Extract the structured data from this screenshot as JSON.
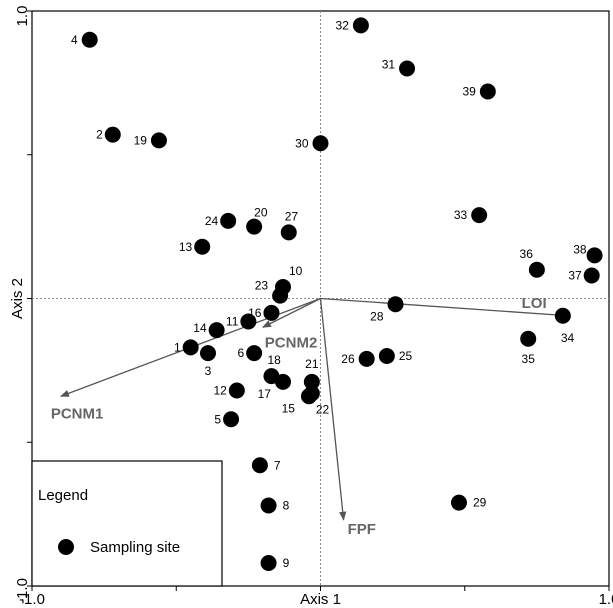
{
  "chart_data": {
    "type": "scatter",
    "xlabel": "Axis 1",
    "ylabel": "Axis 2",
    "xlim": [
      -1.0,
      1.0
    ],
    "ylim": [
      -1.0,
      1.0
    ],
    "x_tick_labels": [
      {
        "value": -1.0,
        "label": "-1.0"
      },
      {
        "value": 0.0,
        "label": "Axis 1"
      },
      {
        "value": 1.0,
        "label": "1.0"
      }
    ],
    "y_tick_labels": [
      {
        "value": 1.0,
        "label": "1.0"
      },
      {
        "value": -1.0,
        "label": "-1.0"
      }
    ],
    "points": [
      {
        "id": "1",
        "x": -0.45,
        "y": -0.17
      },
      {
        "id": "2",
        "x": -0.72,
        "y": 0.57
      },
      {
        "id": "3",
        "x": -0.39,
        "y": -0.19
      },
      {
        "id": "4",
        "x": -0.8,
        "y": 0.9
      },
      {
        "id": "5",
        "x": -0.31,
        "y": -0.42
      },
      {
        "id": "6",
        "x": -0.23,
        "y": -0.19
      },
      {
        "id": "7",
        "x": -0.21,
        "y": -0.58
      },
      {
        "id": "8",
        "x": -0.18,
        "y": -0.72
      },
      {
        "id": "9",
        "x": -0.18,
        "y": -0.92
      },
      {
        "id": "10",
        "x": -0.13,
        "y": 0.04
      },
      {
        "id": "11",
        "x": -0.25,
        "y": -0.08
      },
      {
        "id": "12",
        "x": -0.29,
        "y": -0.32
      },
      {
        "id": "13",
        "x": -0.41,
        "y": 0.18
      },
      {
        "id": "14",
        "x": -0.36,
        "y": -0.11
      },
      {
        "id": "15",
        "x": -0.04,
        "y": -0.34
      },
      {
        "id": "16",
        "x": -0.17,
        "y": -0.05
      },
      {
        "id": "17",
        "x": -0.13,
        "y": -0.29
      },
      {
        "id": "18",
        "x": -0.17,
        "y": -0.27
      },
      {
        "id": "19",
        "x": -0.56,
        "y": 0.55
      },
      {
        "id": "20",
        "x": -0.23,
        "y": 0.25
      },
      {
        "id": "21",
        "x": -0.03,
        "y": -0.29
      },
      {
        "id": "22",
        "x": -0.03,
        "y": -0.33
      },
      {
        "id": "23",
        "x": -0.14,
        "y": 0.01
      },
      {
        "id": "24",
        "x": -0.32,
        "y": 0.27
      },
      {
        "id": "25",
        "x": 0.23,
        "y": -0.2
      },
      {
        "id": "26",
        "x": 0.16,
        "y": -0.21
      },
      {
        "id": "27",
        "x": -0.11,
        "y": 0.23
      },
      {
        "id": "28",
        "x": 0.26,
        "y": -0.02
      },
      {
        "id": "29",
        "x": 0.48,
        "y": -0.71
      },
      {
        "id": "30",
        "x": 0.0,
        "y": 0.54
      },
      {
        "id": "31",
        "x": 0.3,
        "y": 0.8
      },
      {
        "id": "32",
        "x": 0.14,
        "y": 0.95
      },
      {
        "id": "33",
        "x": 0.55,
        "y": 0.29
      },
      {
        "id": "34",
        "x": 0.84,
        "y": -0.06
      },
      {
        "id": "35",
        "x": 0.72,
        "y": -0.14
      },
      {
        "id": "36",
        "x": 0.75,
        "y": 0.1
      },
      {
        "id": "37",
        "x": 0.94,
        "y": 0.08
      },
      {
        "id": "38",
        "x": 0.95,
        "y": 0.15
      },
      {
        "id": "39",
        "x": 0.58,
        "y": 0.72
      }
    ],
    "vectors": [
      {
        "name": "LOI",
        "x": 0.86,
        "y": -0.06
      },
      {
        "name": "FPF",
        "x": 0.08,
        "y": -0.77
      },
      {
        "name": "PCNM1",
        "x": -0.9,
        "y": -0.34
      },
      {
        "name": "PCNM2",
        "x": -0.2,
        "y": -0.1
      }
    ],
    "reference_lines": {
      "x": 0.0,
      "y": 0.0
    },
    "legend": {
      "title": "Legend",
      "entries": [
        "Sampling site"
      ],
      "position": "bottom-left"
    },
    "grid": false
  }
}
